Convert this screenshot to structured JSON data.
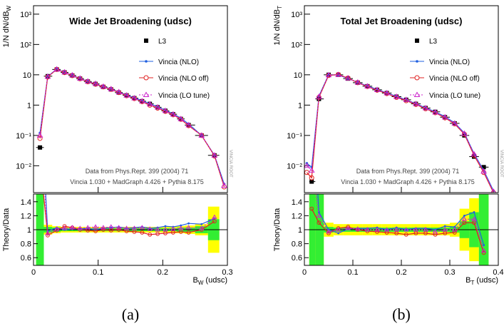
{
  "chart_data": [
    {
      "type": "line",
      "title": "Wide Jet Broadening (udsc)",
      "caption": "(a)",
      "ylabel": "1/N dN/dB",
      "ylabel_sub": "W",
      "xlabel": "B",
      "xlabel_sub": "W",
      "xlabel_suffix": " (udsc)",
      "yscale": "log",
      "ylim": [
        0.0013,
        1900
      ],
      "yticks": [
        {
          "value": 0.01,
          "label": "10⁻²"
        },
        {
          "value": 0.1,
          "label": "10⁻¹"
        },
        1,
        10,
        {
          "value": 100,
          "label": "10²"
        },
        {
          "value": 1000,
          "label": "10³"
        }
      ],
      "xlim": [
        0,
        0.3
      ],
      "xticks": [
        0,
        0.1,
        0.2,
        0.3
      ],
      "x": [
        0.01,
        0.022,
        0.036,
        0.048,
        0.06,
        0.072,
        0.084,
        0.096,
        0.108,
        0.12,
        0.132,
        0.144,
        0.156,
        0.168,
        0.18,
        0.192,
        0.204,
        0.216,
        0.228,
        0.24,
        0.26,
        0.28,
        0.295
      ],
      "series": [
        {
          "name": "L3",
          "color": "#000000",
          "marker": "square",
          "values": [
            0.04,
            9,
            15,
            12,
            9.5,
            7.5,
            6,
            5,
            4,
            3.3,
            2.6,
            2.1,
            1.7,
            1.35,
            1.1,
            0.85,
            0.65,
            0.5,
            0.35,
            0.22,
            0.1,
            0.022,
            null
          ]
        },
        {
          "name": "Vincia (NLO)",
          "color": "#1f5fe0",
          "marker": "dot",
          "values": [
            0.12,
            8.8,
            15.5,
            12,
            9.6,
            7.6,
            6.1,
            5,
            4.1,
            3.4,
            2.7,
            2.15,
            1.75,
            1.4,
            1.12,
            0.88,
            0.68,
            0.52,
            0.37,
            0.24,
            0.1,
            0.022,
            0.0025
          ],
          "ratio_values": [
            3,
            0.98,
            1.03,
            1.0,
            1.01,
            1.01,
            1.02,
            1.0,
            1.02,
            1.03,
            1.04,
            1.02,
            1.03,
            1.04,
            1.02,
            1.03,
            1.05,
            1.04,
            1.06,
            1.09,
            1.08,
            1.16,
            null
          ]
        },
        {
          "name": "Vincia (NLO off)",
          "color": "#e02020",
          "marker": "circle",
          "values": [
            0.08,
            8.5,
            15,
            11.8,
            9.4,
            7.4,
            5.9,
            4.9,
            4,
            3.3,
            2.6,
            2.05,
            1.65,
            1.3,
            1.0,
            0.8,
            0.62,
            0.48,
            0.34,
            0.21,
            0.1,
            0.021,
            0.002
          ],
          "ratio_values": [
            2,
            0.92,
            0.99,
            1.05,
            1.03,
            1.0,
            0.99,
            0.98,
            1.0,
            0.99,
            1.0,
            0.98,
            0.97,
            0.96,
            0.93,
            0.94,
            0.95,
            0.96,
            0.97,
            0.96,
            1.0,
            1.12,
            null
          ]
        },
        {
          "name": "Vincia (LO tune)",
          "color": "#cc22cc",
          "marker": "triangle",
          "dash": true,
          "values": [
            0.1,
            8.7,
            15.2,
            12.2,
            9.7,
            7.6,
            6.1,
            5.1,
            4.1,
            3.4,
            2.7,
            2.1,
            1.7,
            1.35,
            1.08,
            0.85,
            0.65,
            0.5,
            0.35,
            0.22,
            0.1,
            0.022,
            0.0022
          ],
          "ratio_values": [
            2.5,
            0.95,
            1.01,
            1.02,
            1.03,
            1.02,
            1.03,
            1.04,
            1.03,
            1.04,
            1.03,
            1.02,
            1.02,
            1.03,
            1.01,
            1.0,
            1.0,
            1.01,
            1.02,
            1.03,
            1.02,
            1.18,
            null
          ]
        }
      ],
      "annotations": [
        "Data from Phys.Rept. 399 (2004) 71",
        "Vincia 1.030 + MadGraph 4.426 + Pythia 8.175"
      ],
      "watermark": "VINCIA ROOT",
      "ratio": {
        "ylabel": "Theory/Data",
        "ylim": [
          0.49,
          1.51
        ],
        "yticks": [
          0.6,
          0.8,
          1,
          1.2,
          1.4
        ],
        "reference": 1,
        "band_inner_color": "#33ee33",
        "band_outer_color": "#ffff00",
        "band_inner": [
          0.6,
          0.04,
          0.03,
          0.02,
          0.02,
          0.02,
          0.02,
          0.02,
          0.02,
          0.02,
          0.02,
          0.02,
          0.02,
          0.02,
          0.02,
          0.02,
          0.02,
          0.02,
          0.03,
          0.03,
          0.05,
          0.15,
          null
        ],
        "band_outer": [
          0.6,
          0.07,
          0.05,
          0.04,
          0.04,
          0.04,
          0.04,
          0.04,
          0.04,
          0.04,
          0.04,
          0.04,
          0.04,
          0.04,
          0.04,
          0.04,
          0.04,
          0.05,
          0.05,
          0.06,
          0.08,
          0.33,
          null
        ]
      }
    },
    {
      "type": "line",
      "title": "Total Jet Broadening (udsc)",
      "caption": "(b)",
      "ylabel": "1/N dN/dB",
      "ylabel_sub": "T",
      "xlabel": "B",
      "xlabel_sub": "T",
      "xlabel_suffix": " (udsc)",
      "yscale": "log",
      "ylim": [
        0.0013,
        1900
      ],
      "yticks": [
        {
          "value": 0.01,
          "label": "10⁻²"
        },
        {
          "value": 0.1,
          "label": "10⁻¹"
        },
        1,
        10,
        {
          "value": 100,
          "label": "10²"
        },
        {
          "value": 1000,
          "label": "10³"
        }
      ],
      "xlim": [
        0,
        0.4
      ],
      "xticks": [
        0,
        0.1,
        0.2,
        0.3,
        0.4
      ],
      "x": [
        0.005,
        0.015,
        0.03,
        0.05,
        0.07,
        0.09,
        0.11,
        0.13,
        0.15,
        0.17,
        0.19,
        0.21,
        0.23,
        0.25,
        0.27,
        0.29,
        0.31,
        0.33,
        0.35,
        0.37,
        0.39
      ],
      "series": [
        {
          "name": "L3",
          "color": "#000000",
          "marker": "square",
          "values": [
            null,
            0.003,
            1.6,
            10,
            10,
            7.5,
            5.5,
            4.2,
            3.2,
            2.5,
            1.9,
            1.5,
            1.1,
            0.8,
            0.6,
            0.4,
            0.25,
            0.1,
            0.02,
            0.009,
            null
          ]
        },
        {
          "name": "Vincia (NLO)",
          "color": "#1f5fe0",
          "marker": "dot",
          "values": [
            0.012,
            0.009,
            2,
            10,
            9.8,
            7.6,
            5.6,
            4.3,
            3.3,
            2.5,
            1.95,
            1.5,
            1.12,
            0.82,
            0.6,
            0.42,
            0.26,
            0.12,
            0.025,
            0.007,
            0.0015
          ],
          "ratio_values": [
            null,
            3,
            1.25,
            1.0,
            0.95,
            1.01,
            1.02,
            1.02,
            1.03,
            1.0,
            1.03,
            1.0,
            1.02,
            1.02,
            1.0,
            1.05,
            1.04,
            1.2,
            1.25,
            0.78,
            null
          ]
        },
        {
          "name": "Vincia (NLO off)",
          "color": "#e02020",
          "marker": "circle",
          "values": [
            0.006,
            0.004,
            1.8,
            9.5,
            10.2,
            7.8,
            5.5,
            4.1,
            3.1,
            2.4,
            1.8,
            1.4,
            1.05,
            0.76,
            0.56,
            0.38,
            0.24,
            0.11,
            0.022,
            0.006,
            0.0013
          ],
          "ratio_values": [
            null,
            1.3,
            1.1,
            0.95,
            1.02,
            1.04,
            1.0,
            0.98,
            0.97,
            0.96,
            0.95,
            0.93,
            0.95,
            0.95,
            0.93,
            0.95,
            0.96,
            1.1,
            1.1,
            0.67,
            null
          ]
        },
        {
          "name": "Vincia (LO tune)",
          "color": "#cc22cc",
          "marker": "triangle",
          "dash": true,
          "values": [
            0.01,
            0.007,
            1.9,
            9.8,
            10,
            7.7,
            5.6,
            4.2,
            3.2,
            2.5,
            1.9,
            1.5,
            1.1,
            0.8,
            0.58,
            0.4,
            0.25,
            0.115,
            0.024,
            0.0065,
            0.0014
          ],
          "ratio_values": [
            null,
            2,
            1.2,
            0.97,
            1.0,
            1.02,
            1.01,
            1.0,
            1.0,
            1.0,
            1.0,
            1.0,
            1.0,
            1.0,
            0.97,
            1.0,
            1.0,
            1.15,
            1.15,
            0.7,
            null
          ]
        }
      ],
      "annotations": [
        "Data from Phys.Rept. 399 (2004) 71",
        "Vincia 1.030 + MadGraph 4.426 + Pythia 8.175"
      ],
      "watermark": "VINCIA ROOT",
      "ratio": {
        "ylabel": "Theory/Data",
        "ylim": [
          0.49,
          1.51
        ],
        "yticks": [
          0.6,
          0.8,
          1,
          1.2,
          1.4
        ],
        "reference": 1,
        "band_inner_color": "#33ee33",
        "band_outer_color": "#ffff00",
        "band_inner": [
          null,
          0.6,
          0.6,
          0.04,
          0.03,
          0.03,
          0.03,
          0.03,
          0.03,
          0.03,
          0.03,
          0.03,
          0.03,
          0.03,
          0.03,
          0.03,
          0.04,
          0.12,
          0.25,
          0.6,
          null
        ],
        "band_outer": [
          null,
          0.6,
          0.6,
          0.1,
          0.08,
          0.08,
          0.08,
          0.08,
          0.08,
          0.08,
          0.08,
          0.08,
          0.08,
          0.08,
          0.08,
          0.08,
          0.1,
          0.3,
          0.45,
          0.6,
          null
        ]
      }
    }
  ]
}
